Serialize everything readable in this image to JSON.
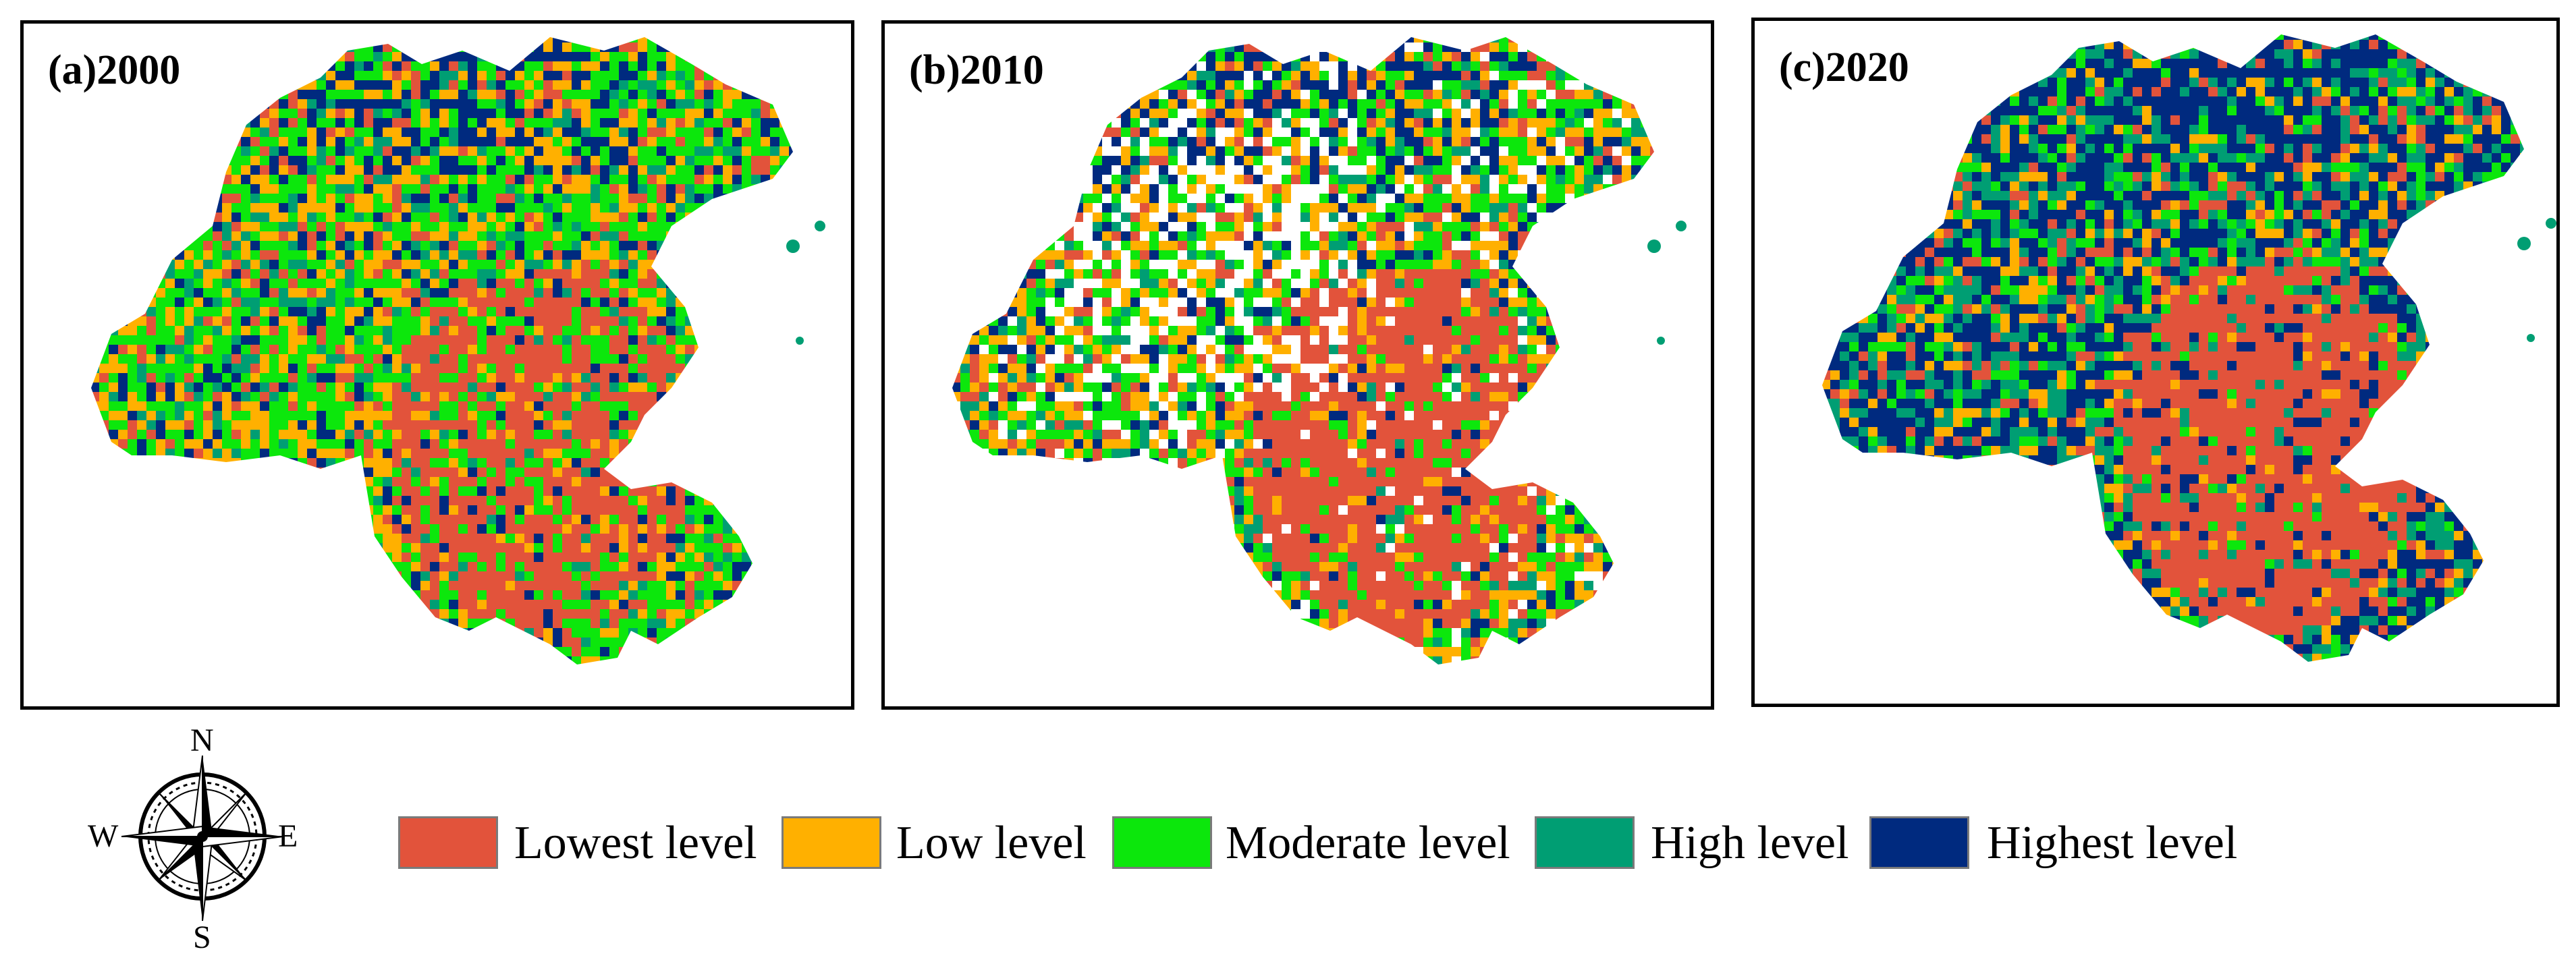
{
  "panels": [
    {
      "label": "(a)2000"
    },
    {
      "label": "(b)2010"
    },
    {
      "label": "(c)2020"
    }
  ],
  "legend": [
    {
      "label": "Lowest level",
      "color": "#e2533b"
    },
    {
      "label": "Low level",
      "color": "#ffb000"
    },
    {
      "label": "Moderate level",
      "color": "#0ce70c"
    },
    {
      "label": "High level",
      "color": "#009e73"
    },
    {
      "label": "Highest level",
      "color": "#002a7f"
    }
  ],
  "compass": {
    "n": "N",
    "s": "S",
    "e": "E",
    "w": "W"
  },
  "palettes": {
    "p2000": [
      "#e2533b",
      "#ffb000",
      "#ffb000",
      "#0ce70c",
      "#0ce70c",
      "#0ce70c",
      "#009e73",
      "#002a7f"
    ],
    "p2010": [
      "#e2533b",
      "#ffb000",
      "#ffb000",
      "#0ce70c",
      "#0ce70c",
      "#ffffff",
      "#009e73",
      "#002a7f"
    ],
    "p2020": [
      "#e2533b",
      "#ffb000",
      "#0ce70c",
      "#009e73",
      "#002a7f",
      "#002a7f",
      "#002a7f",
      "#009e73"
    ]
  }
}
